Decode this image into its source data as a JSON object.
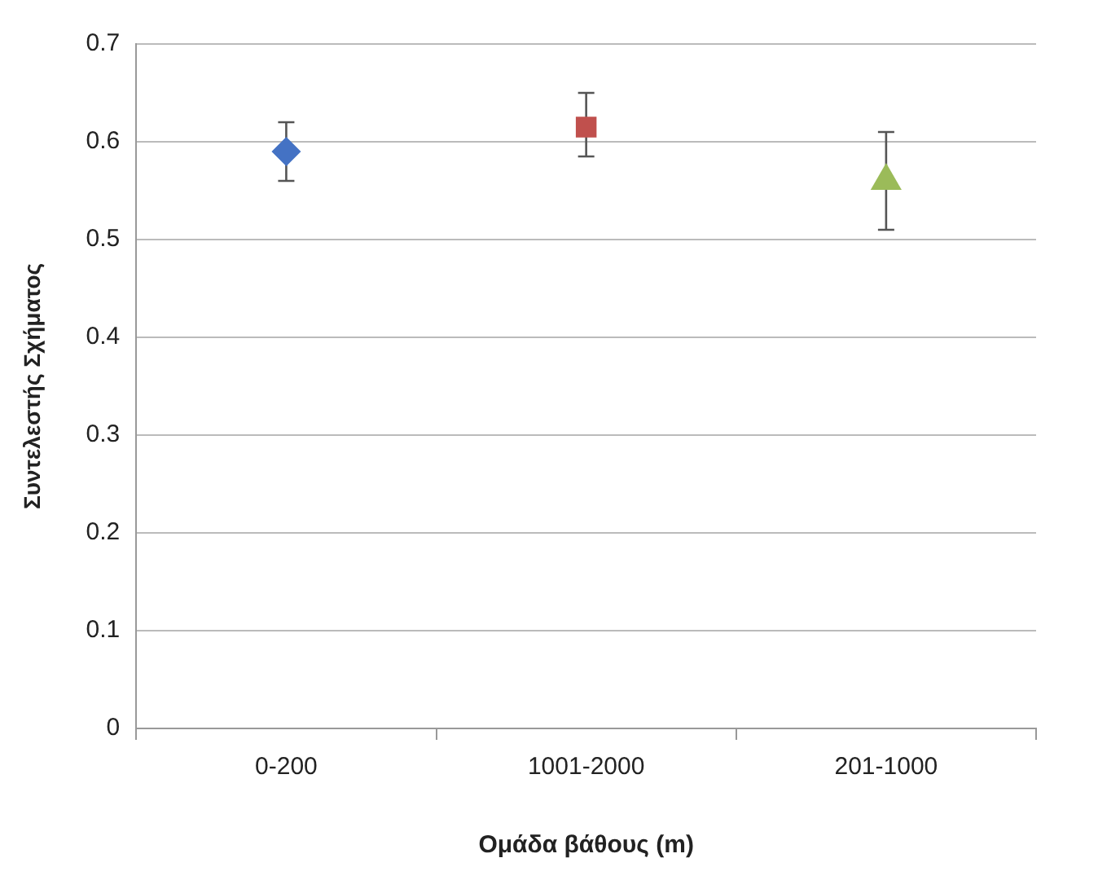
{
  "chart_data": {
    "type": "scatter",
    "xlabel": "Ομάδα βάθους (m)",
    "ylabel": "Συντελεστής Σχήματος",
    "categories": [
      "0-200",
      "1001-2000",
      "201-1000"
    ],
    "series": [
      {
        "x": [
          "0-200"
        ],
        "values": [
          0.59
        ],
        "errors": [
          [
            0.56,
            0.62
          ]
        ],
        "color": "#4472c4",
        "marker": "diamond"
      },
      {
        "x": [
          "1001-2000"
        ],
        "values": [
          0.615
        ],
        "errors": [
          [
            0.585,
            0.65
          ]
        ],
        "color": "#c0504d",
        "marker": "square"
      },
      {
        "x": [
          "201-1000"
        ],
        "values": [
          0.56
        ],
        "errors": [
          [
            0.51,
            0.61
          ]
        ],
        "color": "#9bbb59",
        "marker": "triangle"
      }
    ],
    "ylim": [
      0,
      0.7
    ],
    "yticks": [
      0,
      0.1,
      0.2,
      0.3,
      0.4,
      0.5,
      0.6,
      0.7
    ],
    "grid": "y",
    "legend": false
  }
}
